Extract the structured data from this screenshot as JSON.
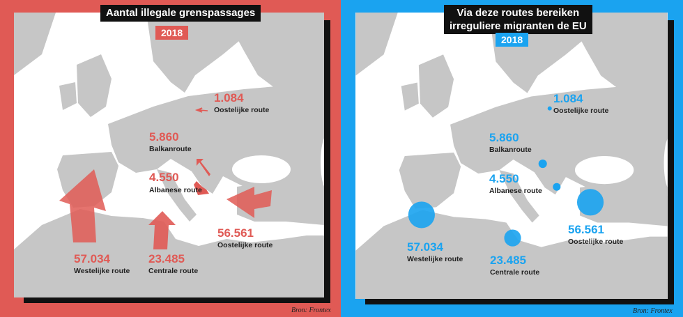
{
  "colors": {
    "left_bg": "#e05a55",
    "right_bg": "#1aa3f0",
    "map_land": "#c6c6c6",
    "map_sea": "#ffffff",
    "accent_red": "#e05a55",
    "accent_blue": "#1aa3f0"
  },
  "left": {
    "title": "Aantal illegale grenspassages",
    "year": "2018",
    "routes": [
      {
        "value": "1.084",
        "label": "Oostelijke route"
      },
      {
        "value": "5.860",
        "label": "Balkanroute"
      },
      {
        "value": "4.550",
        "label": "Albanese route"
      },
      {
        "value": "56.561",
        "label": "Oostelijke route"
      },
      {
        "value": "57.034",
        "label": "Westelijke route"
      },
      {
        "value": "23.485",
        "label": "Centrale route"
      }
    ],
    "source": "Bron: Frontex"
  },
  "right": {
    "title_line1": "Via deze routes bereiken",
    "title_line2": "irreguliere migranten de EU",
    "year": "2018",
    "routes": [
      {
        "value": "1.084",
        "label": "Oostelijke route"
      },
      {
        "value": "5.860",
        "label": "Balkanroute"
      },
      {
        "value": "4.550",
        "label": "Albanese route"
      },
      {
        "value": "56.561",
        "label": "Oostelijke route"
      },
      {
        "value": "57.034",
        "label": "Westelijke route"
      },
      {
        "value": "23.485",
        "label": "Centrale route"
      }
    ],
    "source": "Bron: Frontex"
  }
}
